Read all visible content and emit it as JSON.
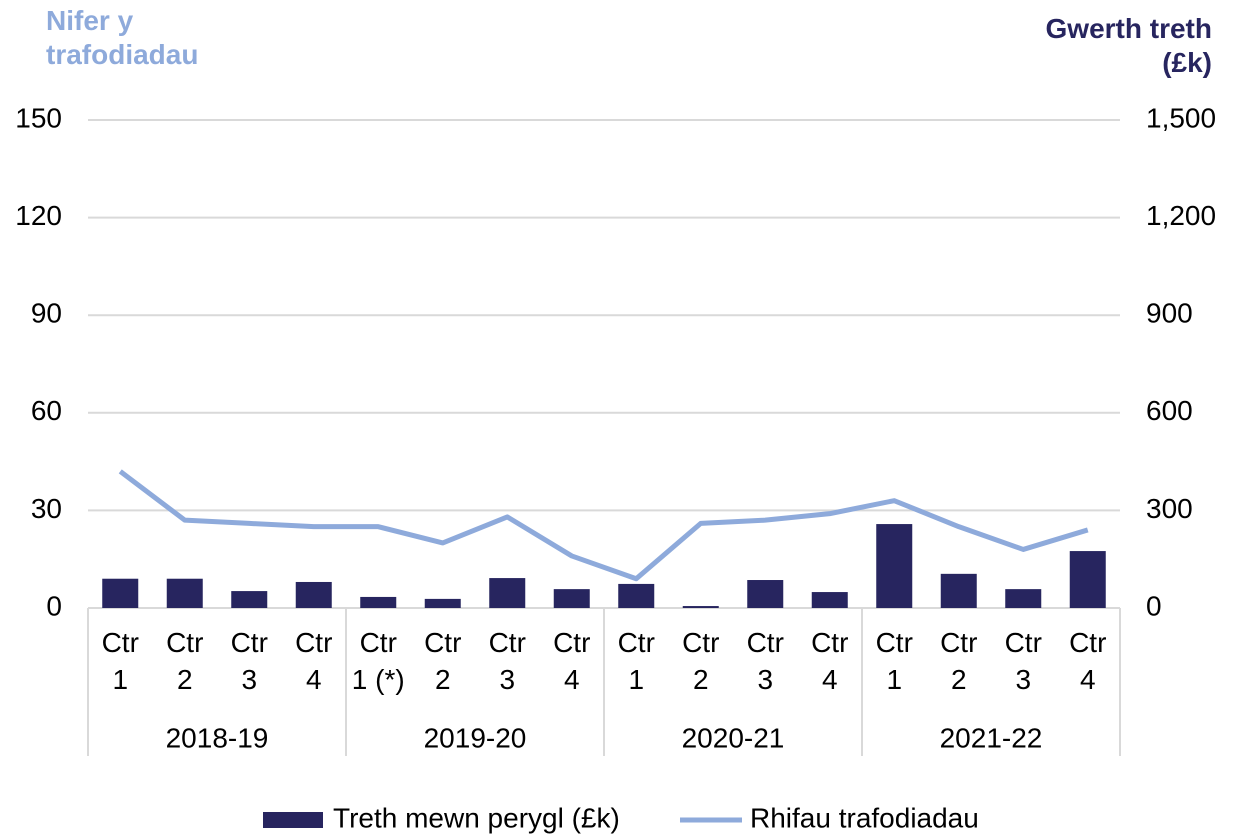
{
  "chart_data": {
    "type": "bar_line",
    "y_title": "Nifer y trafodiadau",
    "y2_title": "Gwerth treth (£k)",
    "categories": [
      "Ctr 1",
      "Ctr 2",
      "Ctr 3",
      "Ctr 4",
      "Ctr 1 (*)",
      "Ctr 2",
      "Ctr 3",
      "Ctr 4",
      "Ctr 1",
      "Ctr 2",
      "Ctr 3",
      "Ctr 4",
      "Ctr 1",
      "Ctr 2",
      "Ctr 3",
      "Ctr 4"
    ],
    "groups": [
      "2018-19",
      "2019-20",
      "2020-21",
      "2021-22"
    ],
    "series": [
      {
        "name": "Treth mewn perygl (£k)",
        "type": "bar",
        "axis": "y2",
        "color": "#27255f",
        "values": [
          90,
          90,
          52,
          80,
          34,
          28,
          92,
          58,
          74,
          6,
          86,
          49,
          258,
          105,
          58,
          175
        ]
      },
      {
        "name": "Rhifau trafodiadau",
        "type": "line",
        "axis": "y",
        "color": "#8eaadb",
        "values": [
          42,
          27,
          26,
          25,
          25,
          20,
          28,
          16,
          9,
          26,
          27,
          29,
          33,
          25,
          18,
          24
        ]
      }
    ],
    "ylim": [
      0,
      150
    ],
    "yticks": [
      0,
      30,
      60,
      90,
      120,
      150
    ],
    "y2lim": [
      0,
      1500
    ],
    "y2ticks": [
      0,
      300,
      600,
      900,
      {
        "value": 1200,
        "label": "1,200"
      },
      {
        "value": 1500,
        "label": "1,500"
      }
    ],
    "grid": true,
    "legend": "bottom"
  }
}
